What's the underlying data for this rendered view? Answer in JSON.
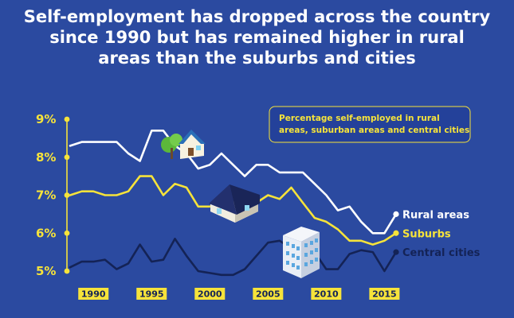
{
  "title": "Self-employment has dropped across the country since 1990 but has remained higher in rural areas than the suburbs and cities",
  "legend_text": [
    "Percentage self-employed in rural",
    "areas, suburban areas and central cities"
  ],
  "colors": {
    "background": "#2b4aa0",
    "rural": "#ffffff",
    "suburbs": "#f6e33a",
    "central": "#142356",
    "axis": "#f6e33a",
    "tick_label_bg": "#f6e33a",
    "tick_label_text": "#142356"
  },
  "chart_data": {
    "type": "line",
    "x": [
      1988,
      1989,
      1990,
      1991,
      1992,
      1993,
      1994,
      1995,
      1996,
      1997,
      1998,
      1999,
      2000,
      2001,
      2002,
      2003,
      2004,
      2005,
      2006,
      2007,
      2008,
      2009,
      2010,
      2011,
      2012,
      2013,
      2014,
      2015,
      2016
    ],
    "series": [
      {
        "name": "Rural areas",
        "values": [
          8.3,
          8.4,
          8.4,
          8.4,
          8.4,
          8.1,
          7.9,
          8.7,
          8.7,
          8.3,
          8.1,
          7.7,
          7.8,
          8.1,
          7.8,
          7.5,
          7.8,
          7.8,
          7.6,
          7.6,
          7.6,
          7.3,
          7.0,
          6.6,
          6.7,
          6.3,
          6.0,
          6.0,
          6.5
        ]
      },
      {
        "name": "Suburbs",
        "values": [
          7.0,
          7.1,
          7.1,
          7.0,
          7.0,
          7.1,
          7.5,
          7.5,
          7.0,
          7.3,
          7.2,
          6.7,
          6.7,
          6.8,
          6.7,
          6.6,
          6.8,
          7.0,
          6.9,
          7.2,
          6.8,
          6.4,
          6.3,
          6.1,
          5.8,
          5.8,
          5.7,
          5.8,
          6.0
        ]
      },
      {
        "name": "Central cities",
        "values": [
          5.1,
          5.25,
          5.25,
          5.3,
          5.05,
          5.2,
          5.7,
          5.25,
          5.3,
          5.85,
          5.4,
          5.0,
          4.95,
          4.9,
          4.9,
          5.05,
          5.4,
          5.75,
          5.8,
          5.6,
          5.45,
          5.5,
          5.05,
          5.05,
          5.45,
          5.55,
          5.5,
          5.0,
          5.5
        ]
      }
    ],
    "y_tick_labels": [
      "9%",
      "8%",
      "7%",
      "6%",
      "5%"
    ],
    "y_ticks": [
      9,
      8,
      7,
      6,
      5
    ],
    "x_tick_labels": [
      "1990",
      "1995",
      "2000",
      "2005",
      "2010",
      "2015"
    ],
    "x_ticks": [
      1990,
      1995,
      2000,
      2005,
      2010,
      2015
    ],
    "ylim": [
      5,
      9
    ],
    "xlim": [
      1988,
      2016
    ],
    "grid": false,
    "legend": "top-right"
  }
}
